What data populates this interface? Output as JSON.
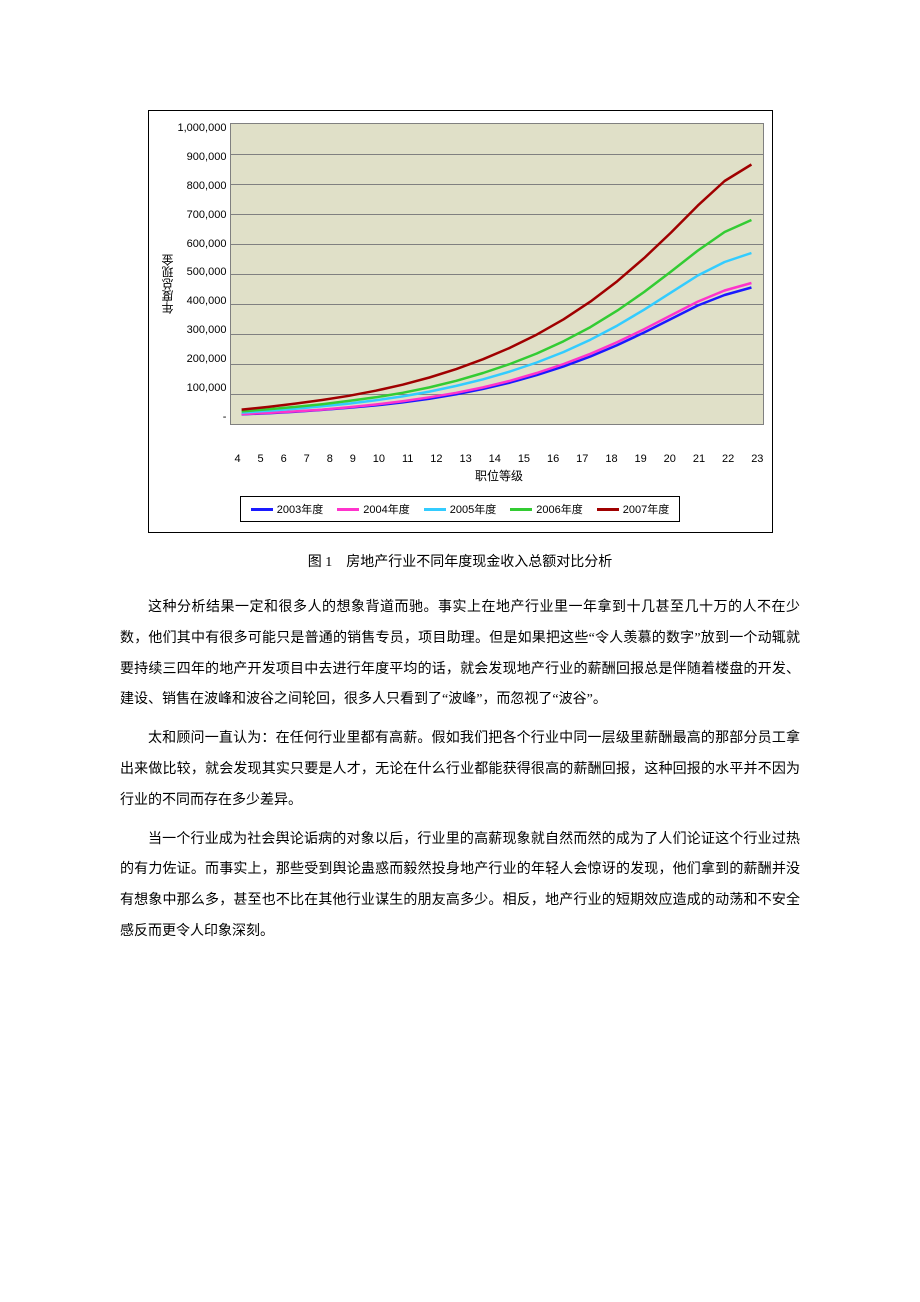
{
  "chart": {
    "type": "line",
    "background_color": "#e0e0c8",
    "outer_border_color": "#000000",
    "plot_border_color": "#808080",
    "grid_color": "#808080",
    "x": [
      4,
      5,
      6,
      7,
      8,
      9,
      10,
      11,
      12,
      13,
      14,
      15,
      16,
      17,
      18,
      19,
      20,
      21,
      22,
      23
    ],
    "x_label": "职位等级",
    "y_label": "年度总现金",
    "y_ticks": [
      "1,000,000",
      "900,000",
      "800,000",
      "700,000",
      "600,000",
      "500,000",
      "400,000",
      "300,000",
      "200,000",
      "100,000",
      "-"
    ],
    "ylim": [
      0,
      1000000
    ],
    "label_fontsize": 12,
    "tick_fontsize": 11,
    "line_width": 2.5,
    "series": [
      {
        "name": "2003年度",
        "color": "#1a1aff",
        "values": [
          32000,
          36000,
          41000,
          47000,
          54000,
          62000,
          72000,
          84000,
          99000,
          117000,
          138000,
          163000,
          192000,
          225000,
          263000,
          305000,
          350000,
          395000,
          430000,
          455000
        ]
      },
      {
        "name": "2004年度",
        "color": "#ff33cc",
        "values": [
          33000,
          37000,
          42000,
          48000,
          56000,
          65000,
          76000,
          89000,
          104000,
          122000,
          144000,
          170000,
          200000,
          234000,
          273000,
          316000,
          362000,
          408000,
          445000,
          470000
        ]
      },
      {
        "name": "2005年度",
        "color": "#33ccff",
        "values": [
          38000,
          44000,
          51000,
          59000,
          68000,
          79000,
          92000,
          108000,
          127000,
          149000,
          175000,
          205000,
          240000,
          281000,
          328000,
          381000,
          438000,
          495000,
          540000,
          570000
        ]
      },
      {
        "name": "2006年度",
        "color": "#33cc33",
        "values": [
          42000,
          49000,
          57000,
          66000,
          77000,
          89000,
          104000,
          122000,
          144000,
          170000,
          200000,
          235000,
          276000,
          323000,
          378000,
          440000,
          508000,
          578000,
          640000,
          680000
        ]
      },
      {
        "name": "2007年度",
        "color": "#a00000",
        "values": [
          48000,
          57000,
          68000,
          80000,
          94000,
          111000,
          131000,
          155000,
          183000,
          216000,
          254000,
          298000,
          349000,
          408000,
          476000,
          553000,
          638000,
          728000,
          810000,
          865000
        ]
      }
    ],
    "legend_border_color": "#000000"
  },
  "caption": "图 1　房地产行业不同年度现金收入总额对比分析",
  "paragraphs": [
    "这种分析结果一定和很多人的想象背道而驰。事实上在地产行业里一年拿到十几甚至几十万的人不在少数，他们其中有很多可能只是普通的销售专员，项目助理。但是如果把这些“令人羡慕的数字”放到一个动辄就要持续三四年的地产开发项目中去进行年度平均的话，就会发现地产行业的薪酬回报总是伴随着楼盘的开发、建设、销售在波峰和波谷之间轮回，很多人只看到了“波峰”，而忽视了“波谷”。",
    "太和顾问一直认为：在任何行业里都有高薪。假如我们把各个行业中同一层级里薪酬最高的那部分员工拿出来做比较，就会发现其实只要是人才，无论在什么行业都能获得很高的薪酬回报，这种回报的水平并不因为行业的不同而存在多少差异。",
    "当一个行业成为社会舆论诟病的对象以后，行业里的高薪现象就自然而然的成为了人们论证这个行业过热的有力佐证。而事实上，那些受到舆论蛊惑而毅然投身地产行业的年轻人会惊讶的发现，他们拿到的薪酬并没有想象中那么多，甚至也不比在其他行业谋生的朋友高多少。相反，地产行业的短期效应造成的动荡和不安全感反而更令人印象深刻。"
  ]
}
